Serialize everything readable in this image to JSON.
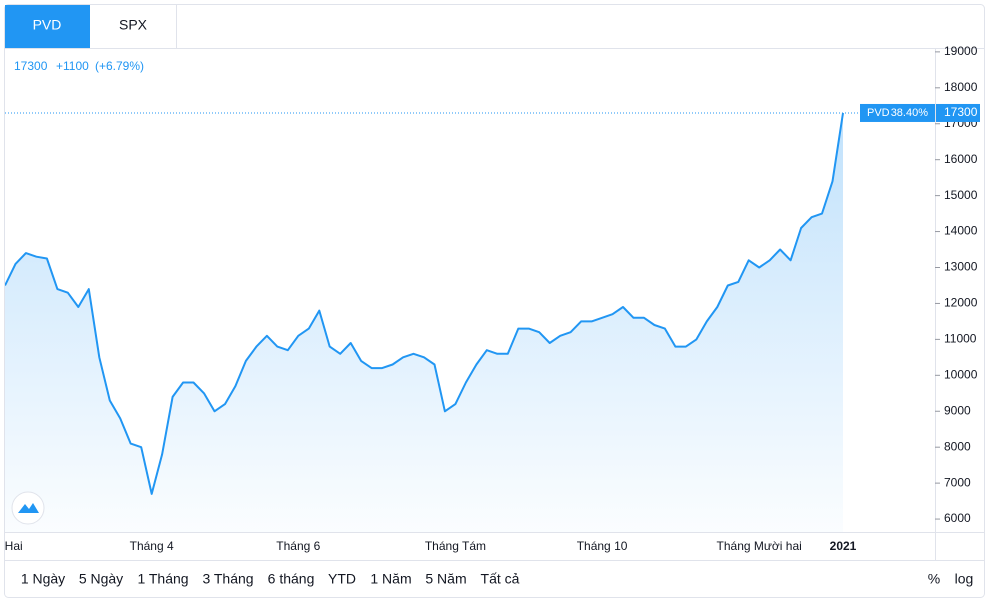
{
  "ui": {
    "tabs": [
      "PVD",
      "SPX"
    ],
    "change_label": "+1100",
    "change_pct_label": "(+6.79%)",
    "period_change_label": "38.40%",
    "ranges": [
      "1 Ngày",
      "5 Ngày",
      "1 Tháng",
      "3 Tháng",
      "6 tháng",
      "YTD",
      "1 Năm",
      "5 Năm",
      "Tất cả"
    ],
    "scale_modes": [
      "%",
      "log"
    ]
  },
  "chart_data": {
    "type": "area",
    "categories": [
      "Tháng Hai",
      null,
      null,
      null,
      null,
      null,
      null,
      null,
      null,
      null,
      null,
      null,
      null,
      null,
      "Tháng 4",
      null,
      null,
      null,
      null,
      null,
      null,
      null,
      null,
      null,
      null,
      null,
      null,
      null,
      "Tháng 6",
      null,
      null,
      null,
      null,
      null,
      null,
      null,
      null,
      null,
      null,
      null,
      null,
      null,
      null,
      "Tháng Tám",
      null,
      null,
      null,
      null,
      null,
      null,
      null,
      null,
      null,
      null,
      null,
      null,
      null,
      "Tháng 10",
      null,
      null,
      null,
      null,
      null,
      null,
      null,
      null,
      null,
      null,
      null,
      null,
      null,
      null,
      "Tháng Mười hai",
      null,
      null,
      null,
      null,
      null,
      null,
      null,
      "2021"
    ],
    "series": [
      {
        "name": "PVD",
        "color": "#2196f3",
        "values": [
          12500,
          13100,
          13400,
          13300,
          13250,
          12400,
          12300,
          11900,
          12400,
          10500,
          9300,
          8800,
          8100,
          8000,
          6700,
          7800,
          9400,
          9800,
          9800,
          9500,
          9000,
          9200,
          9700,
          10400,
          10800,
          11100,
          10800,
          10700,
          11100,
          11300,
          11800,
          10800,
          10600,
          10900,
          10400,
          10200,
          10200,
          10300,
          10500,
          10600,
          10500,
          10300,
          9000,
          9200,
          9800,
          10300,
          10700,
          10600,
          10600,
          11300,
          11300,
          11200,
          10900,
          11100,
          11200,
          11500,
          11500,
          11600,
          11700,
          11900,
          11600,
          11600,
          11400,
          11300,
          10800,
          10800,
          11000,
          11500,
          11900,
          12500,
          12600,
          13200,
          13000,
          13200,
          13500,
          13200,
          14100,
          14400,
          14500,
          15400,
          17300
        ]
      }
    ],
    "ylim": [
      5640,
      19080
    ],
    "yticks": [
      6000,
      7000,
      8000,
      9000,
      10000,
      11000,
      12000,
      13000,
      14000,
      15000,
      16000,
      17000,
      18000,
      19000
    ],
    "grid": false
  }
}
